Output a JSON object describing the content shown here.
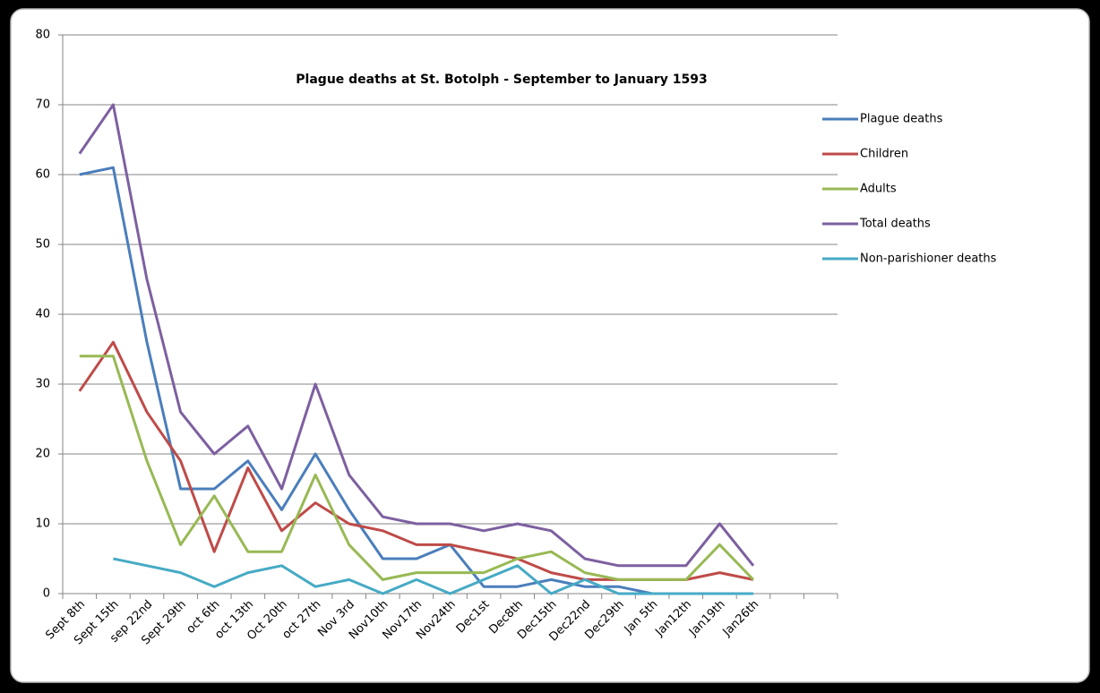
{
  "chart_data": {
    "type": "line",
    "title": "Plague deaths at St. Botolph - September to January 1593",
    "categories": [
      "Sept 8th",
      "Sept 15th",
      "sep 22nd",
      "Sept 29th",
      "oct 6th",
      "oct 13th",
      "Oct 20th",
      "oct 27th",
      "Nov 3rd",
      "Nov10th",
      "Nov17th",
      "Nov24th",
      "Dec1st",
      "Dec8th",
      "Dec15th",
      "Dec22nd",
      "Dec29th",
      "Jan 5th",
      "Jan12th",
      "Jan19th",
      "Jan26th",
      null,
      null
    ],
    "series": [
      {
        "name": "Plague deaths",
        "color": "#4a7ebb",
        "values": [
          60,
          61,
          36,
          15,
          15,
          19,
          12,
          20,
          12,
          5,
          5,
          7,
          1,
          1,
          2,
          1,
          1,
          0,
          0,
          0,
          0,
          null,
          null
        ]
      },
      {
        "name": "Children",
        "color": "#be4b48",
        "values": [
          29,
          36,
          26,
          19,
          6,
          18,
          9,
          13,
          10,
          9,
          7,
          7,
          6,
          5,
          3,
          2,
          2,
          2,
          2,
          3,
          2,
          null,
          null
        ]
      },
      {
        "name": "Adults",
        "color": "#98b954",
        "values": [
          34,
          34,
          19,
          7,
          14,
          6,
          6,
          17,
          7,
          2,
          3,
          3,
          3,
          5,
          6,
          3,
          2,
          2,
          2,
          7,
          2,
          null,
          null
        ]
      },
      {
        "name": "Total deaths",
        "color": "#7d60a0",
        "values": [
          63,
          70,
          45,
          26,
          20,
          24,
          15,
          30,
          17,
          11,
          10,
          10,
          9,
          10,
          9,
          5,
          4,
          4,
          4,
          10,
          4,
          null,
          null
        ]
      },
      {
        "name": "Non-parishioner deaths",
        "color": "#46aac5",
        "values": [
          null,
          5,
          4,
          3,
          1,
          3,
          4,
          1,
          2,
          0,
          2,
          0,
          2,
          4,
          0,
          2,
          0,
          0,
          0,
          0,
          0,
          null,
          null
        ]
      }
    ],
    "ylim": [
      0,
      80
    ],
    "yticks": [
      0,
      10,
      20,
      30,
      40,
      50,
      60,
      70,
      80
    ],
    "grid": true,
    "legend": "right"
  }
}
